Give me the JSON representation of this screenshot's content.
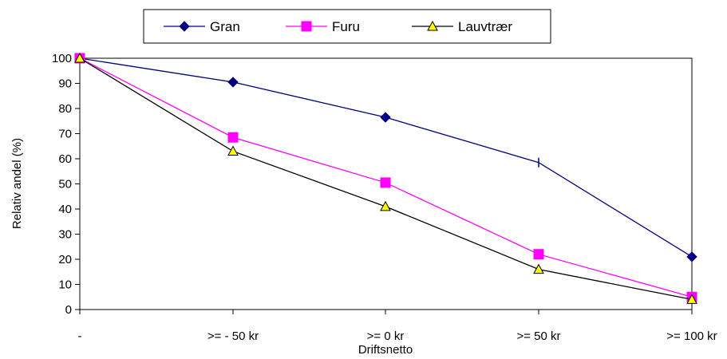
{
  "chart_data": {
    "type": "line",
    "title": "",
    "xlabel": "Driftsnetto",
    "ylabel": "Relativ andel (%)",
    "categories": [
      "-",
      ">= - 50 kr",
      ">= 0 kr",
      ">= 50 kr",
      ">= 100 kr"
    ],
    "ylim": [
      0,
      100
    ],
    "yticks": [
      0,
      10,
      20,
      30,
      40,
      50,
      60,
      70,
      80,
      90,
      100
    ],
    "grid": false,
    "legend_position": "top-center",
    "series": [
      {
        "name": "Gran",
        "color": "#000080",
        "marker": "diamond",
        "values": [
          100,
          90.5,
          76.5,
          58.5,
          21
        ]
      },
      {
        "name": "Furu",
        "color": "#FF00FF",
        "marker": "square",
        "values": [
          100,
          68.5,
          50.5,
          22,
          5
        ]
      },
      {
        "name": "Lauvtrær",
        "color": "#000000",
        "marker": "triangle",
        "marker_fill": "#FFFF00",
        "values": [
          100,
          63,
          41,
          16,
          4
        ]
      }
    ]
  }
}
